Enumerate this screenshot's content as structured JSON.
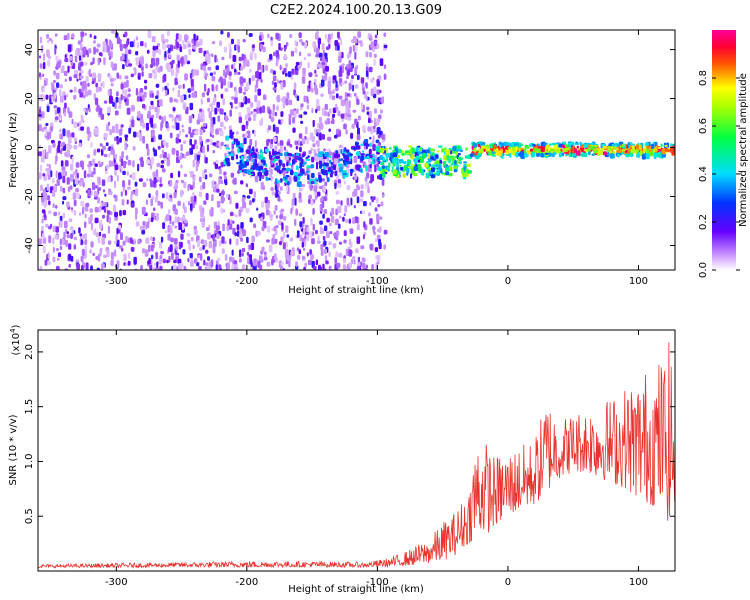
{
  "page_title": "C2E2.2024.100.20.13.G09",
  "chart_data": [
    {
      "type": "heatmap",
      "xlabel": "Height of straight line (km)",
      "ylabel": "Frequency (Hz)",
      "xlim": [
        -360,
        128
      ],
      "ylim": [
        -50,
        48
      ],
      "x_ticks": [
        -300,
        -200,
        -100,
        0,
        100
      ],
      "x_tick_labels": [
        "-300",
        "-200",
        "-100",
        "0",
        "100"
      ],
      "y_ticks": [
        -40,
        -20,
        0,
        20,
        40
      ],
      "y_tick_labels": [
        "-40",
        "-20",
        "0",
        "20",
        "40"
      ],
      "colorbar": {
        "label": "Normalized spectral amplitude",
        "range": [
          0,
          1
        ],
        "ticks": [
          0.0,
          0.2,
          0.4,
          0.6,
          0.8
        ],
        "tick_labels": [
          "0.0",
          "0.2",
          "0.4",
          "0.6",
          "0.8"
        ],
        "colormap": "rainbow (white-purple-blue-cyan-green-yellow-red-magenta)"
      },
      "features": [
        {
          "x_range": [
            -360,
            -95
          ],
          "freq_range": [
            -50,
            48
          ],
          "amplitude": "low noise 0.0-0.3"
        },
        {
          "x_range": [
            -220,
            -100
          ],
          "freq_center": [
            0,
            -8
          ],
          "amplitude": 0.35
        },
        {
          "x_range": [
            -100,
            -30
          ],
          "freq_center": -5,
          "amplitude": 0.55
        },
        {
          "x_range": [
            -30,
            128
          ],
          "freq_center": 0,
          "amplitude": "0.6-1.0"
        }
      ]
    },
    {
      "type": "line",
      "xlabel": "Height of straight line (km)",
      "ylabel": "SNR (10 * v/v)",
      "y_multiplier_label": "(x10",
      "y_multiplier_exp": "4",
      "xlim": [
        -360,
        128
      ],
      "ylim": [
        0,
        22000
      ],
      "x_ticks": [
        -300,
        -200,
        -100,
        0,
        100
      ],
      "x_tick_labels": [
        "-300",
        "-200",
        "-100",
        "0",
        "100"
      ],
      "y_ticks": [
        5000,
        10000,
        15000,
        20000
      ],
      "y_tick_labels": [
        "0.5",
        "1.0",
        "1.5",
        "2.0"
      ],
      "series": [
        {
          "color": "#e8322d",
          "envelope_x": [
            -360,
            -250,
            -200,
            -150,
            -110,
            -90,
            -75,
            -60,
            -50,
            -40,
            -30,
            -25,
            -20,
            -15,
            -10,
            0,
            10,
            20,
            25,
            30,
            35,
            40,
            50,
            60,
            70,
            80,
            90,
            100,
            110,
            120,
            125,
            128
          ],
          "envelope_low": [
            300,
            350,
            350,
            350,
            350,
            400,
            500,
            700,
            900,
            1500,
            2500,
            3000,
            3500,
            3500,
            4000,
            5000,
            5500,
            6000,
            6500,
            7000,
            8000,
            8500,
            9000,
            9000,
            8500,
            8000,
            7500,
            6500,
            6000,
            5500,
            3500,
            4000
          ],
          "envelope_high": [
            600,
            800,
            900,
            900,
            800,
            1200,
            2000,
            3000,
            4500,
            5500,
            7500,
            12000,
            12500,
            11500,
            10500,
            11000,
            11500,
            12000,
            14000,
            16000,
            15000,
            14000,
            14500,
            15000,
            15500,
            16000,
            17000,
            18000,
            19000,
            20000,
            21500,
            20000
          ]
        }
      ]
    }
  ]
}
